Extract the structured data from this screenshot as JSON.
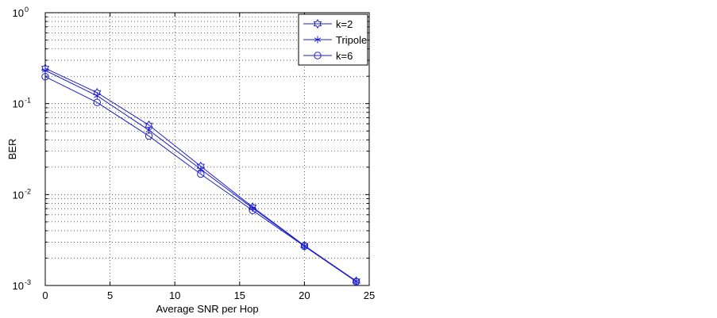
{
  "chart_data": {
    "type": "line",
    "title": "",
    "xlabel": "Average SNR per Hop",
    "ylabel": "BER",
    "xlim": [
      0,
      25
    ],
    "ylim": [
      0.001,
      1
    ],
    "yscale": "log",
    "grid": true,
    "legend_position": "top-right",
    "x_ticks": [
      "0",
      "5",
      "10",
      "15",
      "20",
      "25"
    ],
    "y_ticks": [
      {
        "base": "10",
        "exp": "-3"
      },
      {
        "base": "10",
        "exp": "-2"
      },
      {
        "base": "10",
        "exp": "-1"
      },
      {
        "base": "10",
        "exp": "0"
      }
    ],
    "x": [
      0,
      4,
      8,
      12,
      16,
      20,
      24
    ],
    "series": [
      {
        "name": "k=2",
        "marker": "hexagram",
        "color": "#1f1fd0",
        "values": [
          0.245,
          0.132,
          0.058,
          0.0205,
          0.0073,
          0.00275,
          0.00112
        ]
      },
      {
        "name": "Tripole",
        "marker": "asterisk",
        "color": "#1f1fd0",
        "values": [
          0.232,
          0.122,
          0.051,
          0.019,
          0.0071,
          0.00272,
          0.00111
        ]
      },
      {
        "name": "k=6",
        "marker": "circle",
        "color": "#1f1fd0",
        "values": [
          0.198,
          0.103,
          0.044,
          0.0168,
          0.0067,
          0.0027,
          0.0011
        ]
      }
    ]
  }
}
